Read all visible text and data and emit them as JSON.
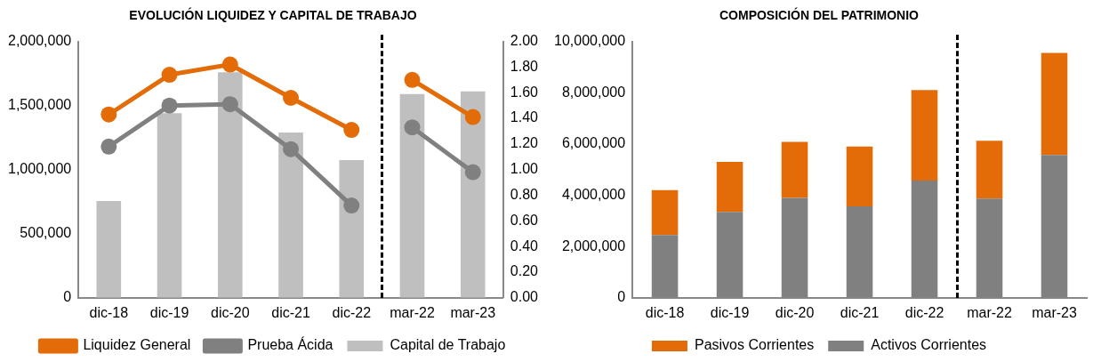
{
  "chart_data": [
    {
      "type": "bar",
      "title": "EVOLUCIÓN LIQUIDEZ Y CAPITAL DE TRABAJO",
      "categories": [
        "dic-18",
        "dic-19",
        "dic-20",
        "dic-21",
        "dic-22",
        "mar-22",
        "mar-23"
      ],
      "series": [
        {
          "name": "Capital de Trabajo",
          "type": "bar",
          "color": "#bfbfbf",
          "values": [
            755000,
            1440000,
            1760000,
            1290000,
            1075000,
            1590000,
            1610000
          ]
        },
        {
          "name": "Liquidez General",
          "type": "line",
          "axis": "y2",
          "color": "#e36c09",
          "values": [
            1.43,
            1.74,
            1.82,
            1.56,
            1.31,
            1.7,
            1.41
          ]
        },
        {
          "name": "Prueba Ácida",
          "type": "line",
          "axis": "y2",
          "color": "#808080",
          "values": [
            1.18,
            1.5,
            1.51,
            1.16,
            0.72,
            1.33,
            0.98
          ]
        }
      ],
      "ylim": [
        0,
        2000000
      ],
      "yticks": [
        {
          "value": 0,
          "label": "0"
        },
        {
          "value": 500000,
          "label": "500,000"
        },
        {
          "value": 1000000,
          "label": "1,000,000"
        },
        {
          "value": 1500000,
          "label": "1,500,000"
        },
        {
          "value": 2000000,
          "label": "2,000,000"
        }
      ],
      "y2lim": [
        0,
        2
      ],
      "y2ticks": [
        {
          "value": 0,
          "label": "0.00"
        },
        {
          "value": 0.2,
          "label": "0.20"
        },
        {
          "value": 0.4,
          "label": "0.40"
        },
        {
          "value": 0.6,
          "label": "0.60"
        },
        {
          "value": 0.8,
          "label": "0.80"
        },
        {
          "value": 1,
          "label": "1.00"
        },
        {
          "value": 1.2,
          "label": "1.20"
        },
        {
          "value": 1.4,
          "label": "1.40"
        },
        {
          "value": 1.6,
          "label": "1.60"
        },
        {
          "value": 1.8,
          "label": "1.80"
        },
        {
          "value": 2,
          "label": "2.00"
        }
      ],
      "marker": "circle",
      "legend": "bottom",
      "grid": false
    },
    {
      "type": "bar",
      "title": "COMPOSICIÓN DEL PATRIMONIO",
      "stacked": true,
      "categories": [
        "dic-18",
        "dic-19",
        "dic-20",
        "dic-21",
        "dic-22",
        "mar-22",
        "mar-23"
      ],
      "series": [
        {
          "name": "Activos Corrientes",
          "color": "#808080",
          "values": [
            2450000,
            3350000,
            3900000,
            3570000,
            4570000,
            3870000,
            5570000
          ]
        },
        {
          "name": "Pasivos Corrientes",
          "color": "#e36c09",
          "values": [
            1750000,
            1950000,
            2180000,
            2330000,
            3530000,
            2260000,
            3980000
          ]
        }
      ],
      "ylim": [
        0,
        10000000
      ],
      "yticks": [
        {
          "value": 0,
          "label": "0"
        },
        {
          "value": 2000000,
          "label": "2,000,000"
        },
        {
          "value": 4000000,
          "label": "4,000,000"
        },
        {
          "value": 6000000,
          "label": "6,000,000"
        },
        {
          "value": 8000000,
          "label": "8,000,000"
        },
        {
          "value": 10000000,
          "label": "10,000,000"
        }
      ],
      "legend": "bottom",
      "grid": false
    }
  ]
}
